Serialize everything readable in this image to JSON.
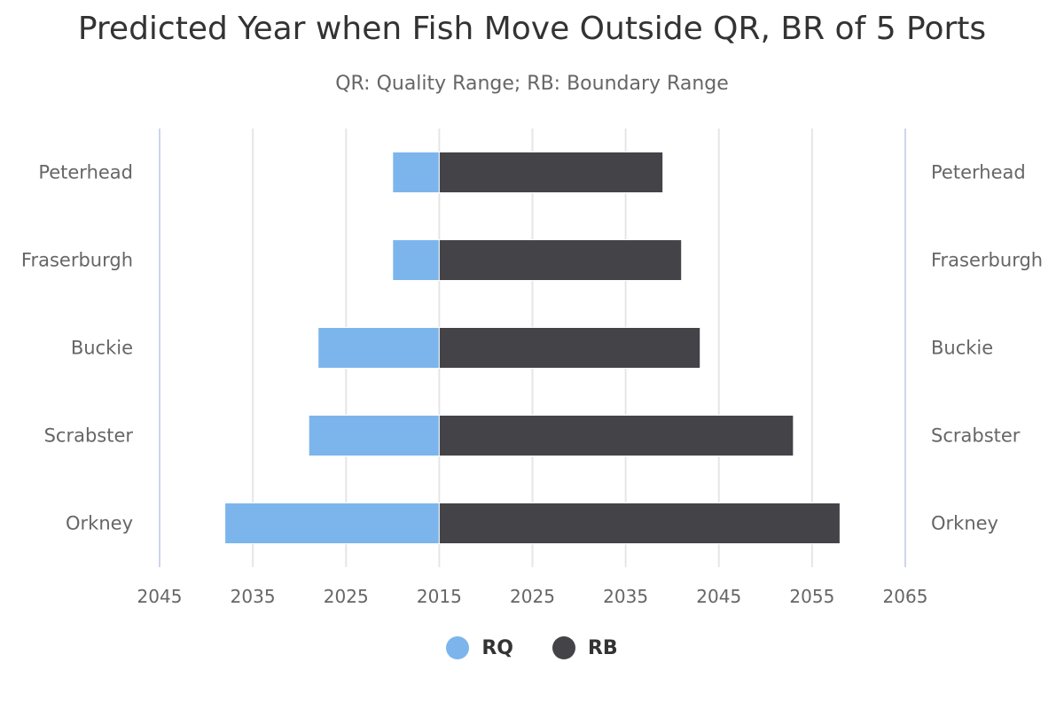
{
  "chart_data": {
    "type": "bar",
    "orientation": "horizontal-diverging",
    "title": "Predicted Year when Fish Move Outside QR, BR of 5 Ports",
    "subtitle": "QR: Quality Range; RB: Boundary Range",
    "categories": [
      "Peterhead",
      "Fraserburgh",
      "Buckie",
      "Scrabster",
      "Orkney"
    ],
    "baseline_year": 2015,
    "x_tick_labels": [
      "2045",
      "2035",
      "2025",
      "2015",
      "2025",
      "2035",
      "2045",
      "2055",
      "2065"
    ],
    "xlim_offset": [
      -30,
      50
    ],
    "series": [
      {
        "name": "RQ",
        "color": "#7cb5ec",
        "direction": "left",
        "values": [
          2020,
          2020,
          2028,
          2029,
          2038
        ]
      },
      {
        "name": "RB",
        "color": "#434348",
        "direction": "right",
        "values": [
          2039,
          2041,
          2043,
          2053,
          2058
        ]
      }
    ],
    "grid": true,
    "legend_position": "bottom-center"
  }
}
